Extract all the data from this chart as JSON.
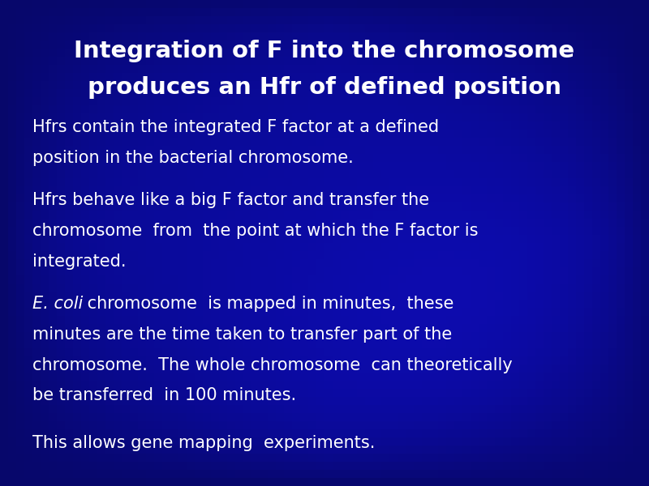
{
  "title_line1": "Integration of F into the chromosome",
  "title_line2": "produces an Hfr of defined position",
  "bullet1_line1": "Hfrs contain the integrated F factor at a defined",
  "bullet1_line2": "position in the bacterial chromosome.",
  "bullet2_line1": "Hfrs behave like a big F factor and transfer the",
  "bullet2_line2": "chromosome  from  the point at which the F factor is",
  "bullet2_line3": "integrated.",
  "bullet3_italic": "E. coli",
  "bullet3_line1_rest": " chromosome  is mapped in minutes,  these",
  "bullet3_line2": "minutes are the time taken to transfer part of the",
  "bullet3_line3": "chromosome.  The whole chromosome  can theoretically",
  "bullet3_line4": "be transferred  in 100 minutes.",
  "bullet4": "This allows gene mapping  experiments.",
  "bg_color": "#0a0a9a",
  "text_color": "#ffffff",
  "title_fontsize": 21,
  "body_fontsize": 15,
  "fig_width": 8.0,
  "fig_height": 6.0,
  "dpi": 100
}
